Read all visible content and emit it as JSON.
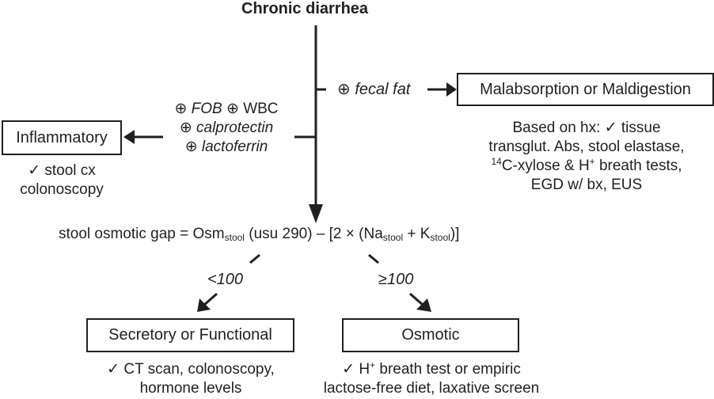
{
  "title": "Chronic diarrhea",
  "fecal_fat": {
    "sym": "⊕",
    "label": "fecal fat"
  },
  "malabsorption": {
    "box": "Malabsorption or Maldigestion",
    "line1": "Based on hx: ✓ tissue",
    "line2": "transglut. Abs, stool elastase,",
    "line3_sup": "14",
    "line3_a": "C-xylose & H",
    "line3_sup2": "+",
    "line3_b": " breath tests,",
    "line4": "EGD w/ bx, EUS"
  },
  "inflammatory_markers": {
    "sym": "⊕",
    "fob": "FOB",
    "wbc": "WBC",
    "calprotectin": "calprotectin",
    "lactoferrin": "lactoferrin"
  },
  "inflammatory": {
    "box": "Inflammatory",
    "line1": "✓ stool cx",
    "line2": "colonoscopy"
  },
  "osmotic_gap": {
    "lead": "stool osmotic gap = Osm",
    "sub1": "stool",
    "mid": " (usu 290) – [2 × (Na",
    "sub2": "stool",
    "plus": " + K",
    "sub3": "stool",
    "end": ")]"
  },
  "secretory": {
    "threshold": "<100",
    "box": "Secretory or Functional",
    "line1": "✓ CT scan, colonoscopy,",
    "line2": "hormone levels"
  },
  "osmotic": {
    "threshold": "≥100",
    "box": "Osmotic",
    "line1_a": "✓ H",
    "line1_sup": "+",
    "line1_b": " breath test or empiric",
    "line2": "lactose-free diet, laxative screen"
  }
}
